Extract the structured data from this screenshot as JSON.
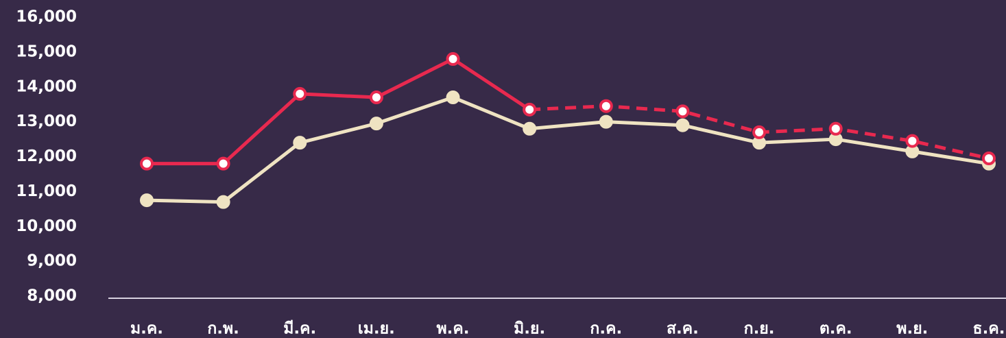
{
  "chart_data": {
    "type": "line",
    "categories": [
      "ม.ค.",
      "ก.พ.",
      "มี.ค.",
      "เม.ย.",
      "พ.ค.",
      "มิ.ย.",
      "ก.ค.",
      "ส.ค.",
      "ก.ย.",
      "ต.ค.",
      "พ.ย.",
      "ธ.ค."
    ],
    "series": [
      {
        "color": "#e8294f",
        "marker_fill": "#ffffff",
        "dash_from": 5,
        "values": [
          11800,
          11800,
          13800,
          13700,
          14800,
          13350,
          13450,
          13300,
          12700,
          12800,
          12450,
          11950
        ]
      },
      {
        "color": "#efe3c2",
        "marker_fill": "#efe3c2",
        "values": [
          10750,
          10700,
          12400,
          12950,
          13700,
          12800,
          13000,
          12900,
          12400,
          12500,
          12150,
          11800
        ]
      }
    ],
    "ylim": [
      8000,
      16000
    ],
    "yticks": [
      {
        "value": 8000,
        "label": "8,000"
      },
      {
        "value": 9000,
        "label": "9,000"
      },
      {
        "value": 10000,
        "label": "10,000"
      },
      {
        "value": 11000,
        "label": "11,000"
      },
      {
        "value": 12000,
        "label": "12,000"
      },
      {
        "value": 13000,
        "label": "13,000"
      },
      {
        "value": 14000,
        "label": "14,000"
      },
      {
        "value": 15000,
        "label": "15,000"
      },
      {
        "value": 16000,
        "label": "16,000"
      }
    ],
    "grid": false
  }
}
